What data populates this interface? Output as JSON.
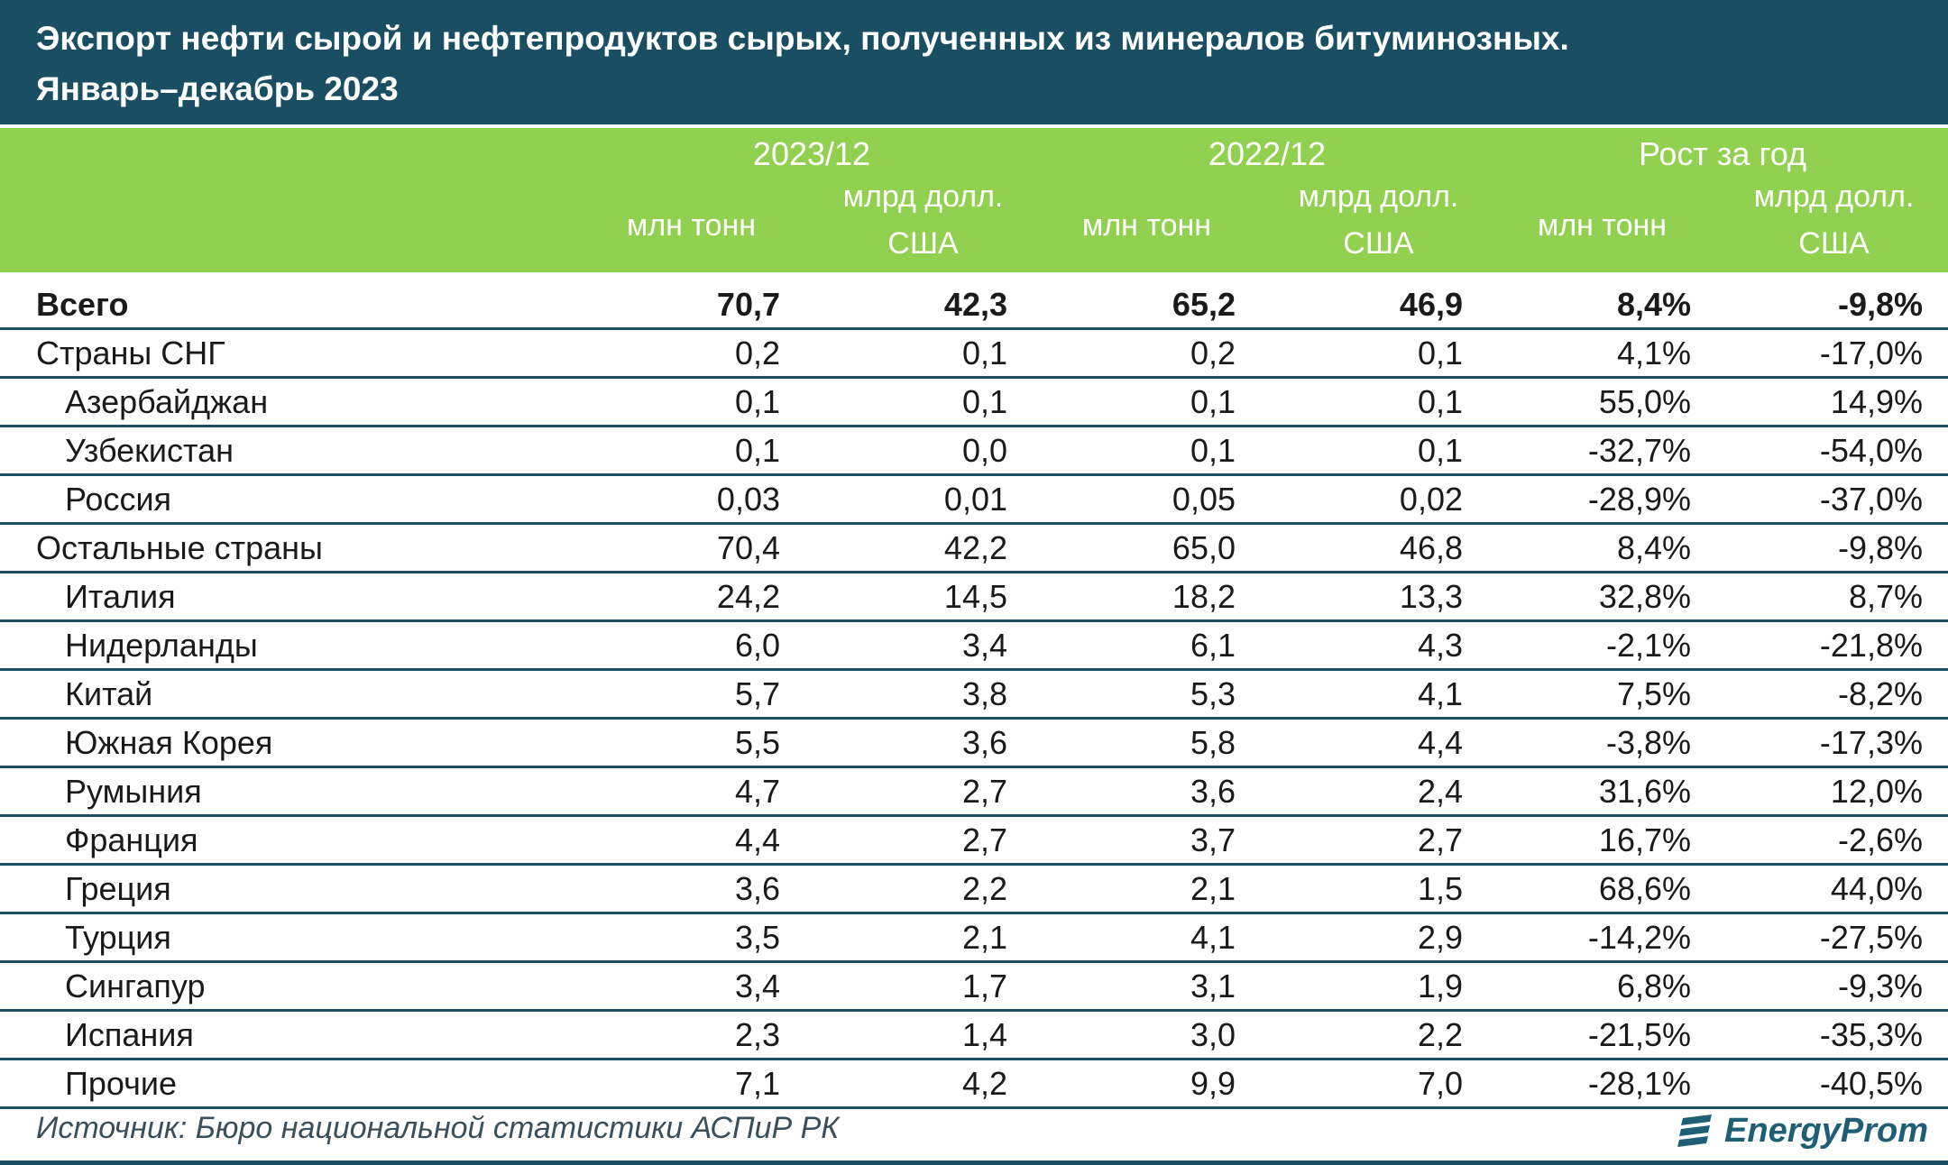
{
  "title": {
    "line1": "Экспорт нефти сырой и нефтепродуктов сырых, полученных из минералов битуминозных.",
    "line2": "Январь–декабрь 2023"
  },
  "columns": {
    "groups": [
      "2023/12",
      "2022/12",
      "Рост за год"
    ],
    "units": {
      "mass": "млн тонн",
      "value_line1": "млрд долл.",
      "value_line2": "США"
    }
  },
  "rows": [
    {
      "name": "Всего",
      "v": [
        "70,7",
        "42,3",
        "65,2",
        "46,9",
        "8,4%",
        "-9,8%"
      ]
    },
    {
      "name": "Страны СНГ",
      "v": [
        "0,2",
        "0,1",
        "0,2",
        "0,1",
        "4,1%",
        "-17,0%"
      ]
    },
    {
      "name": "Азербайджан",
      "v": [
        "0,1",
        "0,1",
        "0,1",
        "0,1",
        "55,0%",
        "14,9%"
      ]
    },
    {
      "name": "Узбекистан",
      "v": [
        "0,1",
        "0,0",
        "0,1",
        "0,1",
        "-32,7%",
        "-54,0%"
      ]
    },
    {
      "name": "Россия",
      "v": [
        "0,03",
        "0,01",
        "0,05",
        "0,02",
        "-28,9%",
        "-37,0%"
      ]
    },
    {
      "name": "Остальные страны",
      "v": [
        "70,4",
        "42,2",
        "65,0",
        "46,8",
        "8,4%",
        "-9,8%"
      ]
    },
    {
      "name": "Италия",
      "v": [
        "24,2",
        "14,5",
        "18,2",
        "13,3",
        "32,8%",
        "8,7%"
      ]
    },
    {
      "name": "Нидерланды",
      "v": [
        "6,0",
        "3,4",
        "6,1",
        "4,3",
        "-2,1%",
        "-21,8%"
      ]
    },
    {
      "name": "Китай",
      "v": [
        "5,7",
        "3,8",
        "5,3",
        "4,1",
        "7,5%",
        "-8,2%"
      ]
    },
    {
      "name": "Южная Корея",
      "v": [
        "5,5",
        "3,6",
        "5,8",
        "4,4",
        "-3,8%",
        "-17,3%"
      ]
    },
    {
      "name": "Румыния",
      "v": [
        "4,7",
        "2,7",
        "3,6",
        "2,4",
        "31,6%",
        "12,0%"
      ]
    },
    {
      "name": "Франция",
      "v": [
        "4,4",
        "2,7",
        "3,7",
        "2,7",
        "16,7%",
        "-2,6%"
      ]
    },
    {
      "name": "Греция",
      "v": [
        "3,6",
        "2,2",
        "2,1",
        "1,5",
        "68,6%",
        "44,0%"
      ]
    },
    {
      "name": "Турция",
      "v": [
        "3,5",
        "2,1",
        "4,1",
        "2,9",
        "-14,2%",
        "-27,5%"
      ]
    },
    {
      "name": "Сингапур",
      "v": [
        "3,4",
        "1,7",
        "3,1",
        "1,9",
        "6,8%",
        "-9,3%"
      ]
    },
    {
      "name": "Испания",
      "v": [
        "2,3",
        "1,4",
        "3,0",
        "2,2",
        "-21,5%",
        "-35,3%"
      ]
    },
    {
      "name": "Прочие",
      "v": [
        "7,1",
        "4,2",
        "9,9",
        "7,0",
        "-28,1%",
        "-40,5%"
      ]
    }
  ],
  "source": "Источник: Бюро национальной статистики АСПиР РК",
  "logo": {
    "text": "EnergyProm",
    "icon": "energyprom-logo-icon"
  },
  "colors": {
    "header_bg": "#1a4f63",
    "subheader_bg": "#92d050",
    "rule": "#1a4f63"
  }
}
